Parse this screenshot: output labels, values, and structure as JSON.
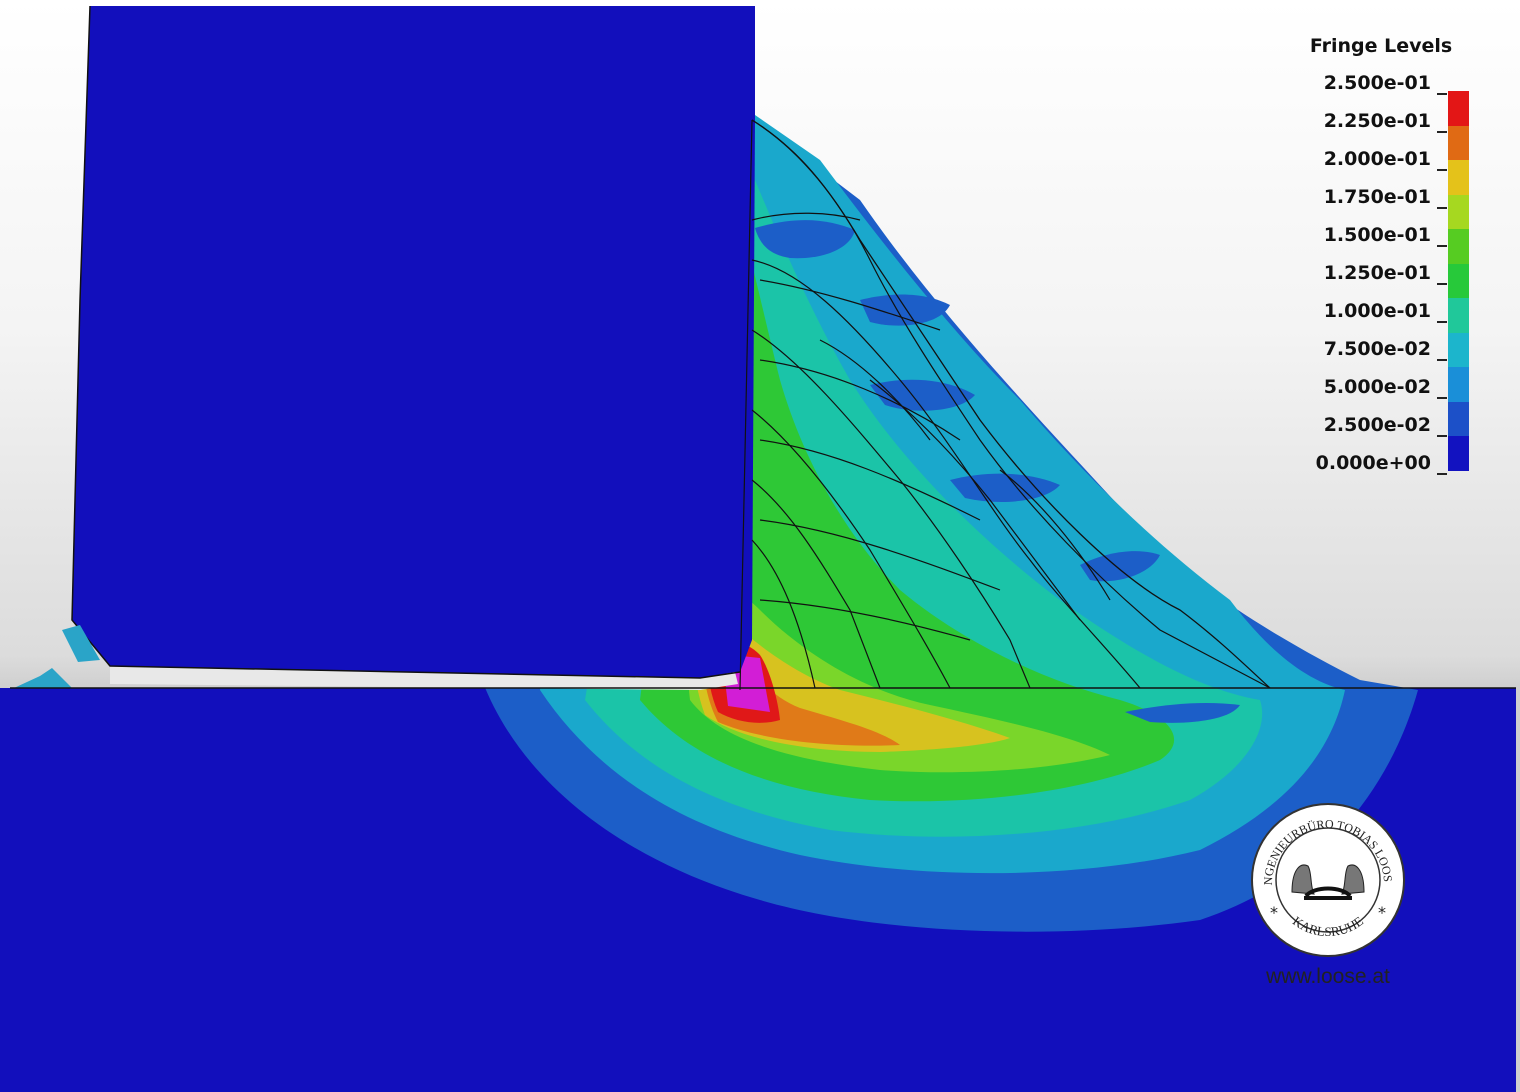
{
  "legend": {
    "title": "Fringe Levels",
    "levels": [
      {
        "label": "2.500e-01",
        "color": "#e31616"
      },
      {
        "label": "2.250e-01",
        "color": "#e06a14"
      },
      {
        "label": "2.000e-01",
        "color": "#e4c21a"
      },
      {
        "label": "1.750e-01",
        "color": "#a6d820"
      },
      {
        "label": "1.500e-01",
        "color": "#56cc22"
      },
      {
        "label": "1.250e-01",
        "color": "#27c93a"
      },
      {
        "label": "1.000e-01",
        "color": "#20c89a"
      },
      {
        "label": "7.500e-02",
        "color": "#1cb5cc"
      },
      {
        "label": "5.000e-02",
        "color": "#1a8fd8"
      },
      {
        "label": "2.500e-02",
        "color": "#1c50c8"
      },
      {
        "label": "0.000e+00",
        "color": "#1212c0"
      }
    ]
  },
  "model_colors": {
    "background_blue": "#120fbc",
    "level_1": "#1c5ec8",
    "level_2": "#1aa8cc",
    "level_3": "#1bc4a8",
    "level_4": "#2ec836",
    "level_5": "#7ad62a",
    "level_6": "#d7c21f",
    "level_7": "#e07a18",
    "level_8": "#e01818",
    "peak": "#d21ed6"
  },
  "logo": {
    "ring_text_top": "INGENIEURBÜRO TOBIAS LOOSE",
    "ring_text_bottom": "KARLSRUHE"
  },
  "website": "www.loose.at"
}
